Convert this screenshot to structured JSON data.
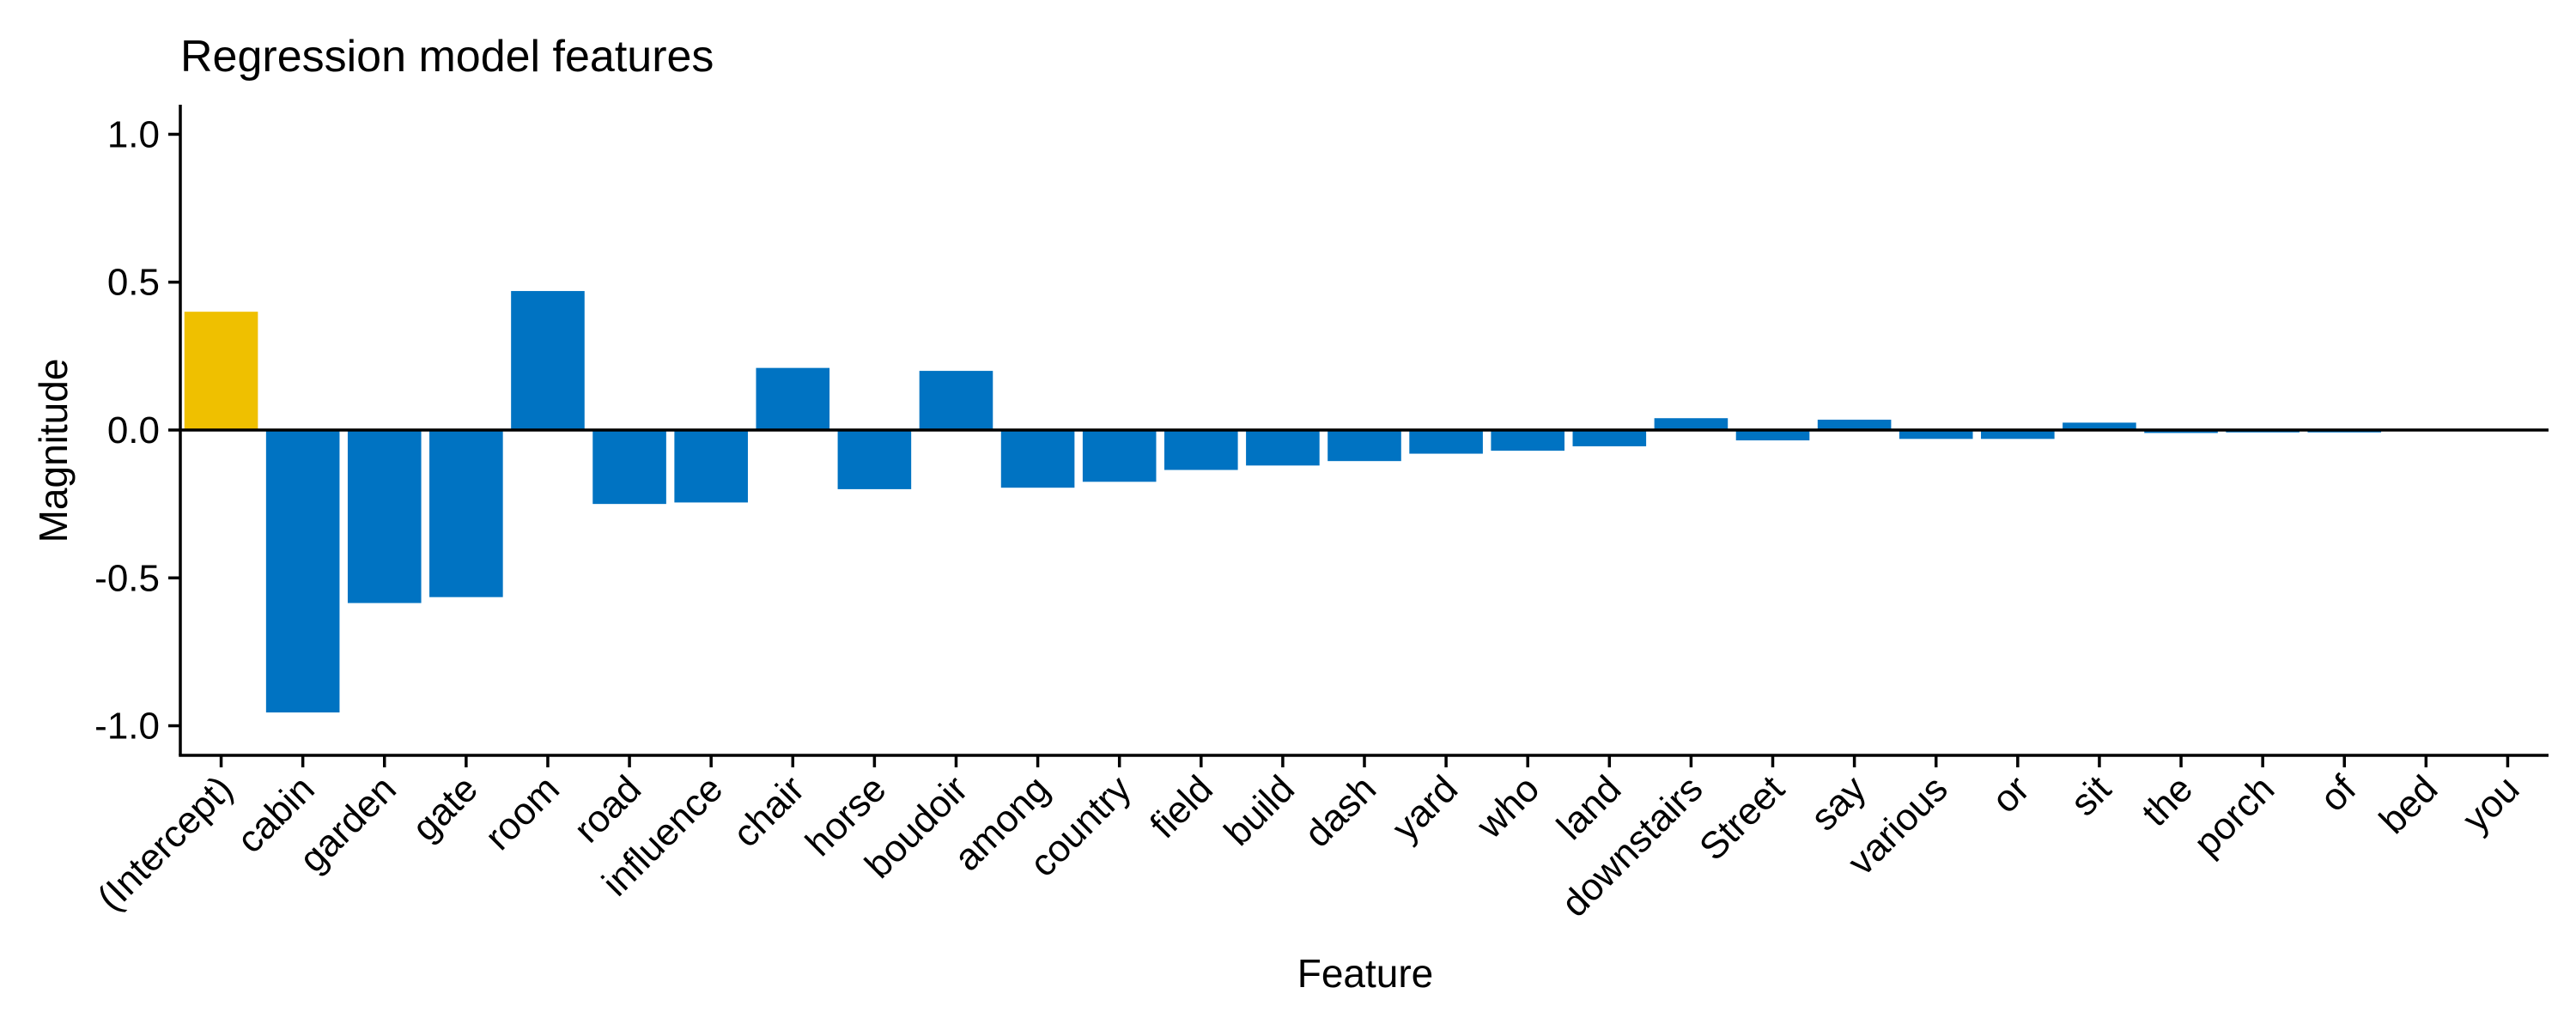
{
  "chart_data": {
    "type": "bar",
    "title": "Regression model features",
    "xlabel": "Feature",
    "ylabel": "Magnitude",
    "ylim": [
      -1.1,
      1.1
    ],
    "yticks": [
      1.0,
      0.5,
      0.0,
      -0.5,
      -1.0
    ],
    "ytick_labels": [
      "1.0",
      "0.5",
      "0.0",
      "-0.5",
      "-1.0"
    ],
    "categories": [
      "(Intercept)",
      "cabin",
      "garden",
      "gate",
      "room",
      "road",
      "influence",
      "chair",
      "horse",
      "boudoir",
      "among",
      "country",
      "field",
      "build",
      "dash",
      "yard",
      "who",
      "land",
      "downstairs",
      "Street",
      "say",
      "various",
      "or",
      "sit",
      "the",
      "porch",
      "of",
      "bed",
      "you"
    ],
    "values": [
      0.4,
      -0.955,
      -0.585,
      -0.565,
      0.47,
      -0.25,
      -0.245,
      0.21,
      -0.2,
      0.2,
      -0.195,
      -0.175,
      -0.135,
      -0.12,
      -0.105,
      -0.08,
      -0.07,
      -0.055,
      0.04,
      -0.035,
      0.035,
      -0.03,
      -0.03,
      0.025,
      -0.01,
      -0.008,
      -0.008,
      0.0,
      0.0
    ],
    "colors": {
      "intercept": "#EFC000",
      "feature": "#0073C2",
      "axis": "#000000",
      "zero_line": "#000000"
    },
    "grid": false,
    "legend": "none"
  }
}
